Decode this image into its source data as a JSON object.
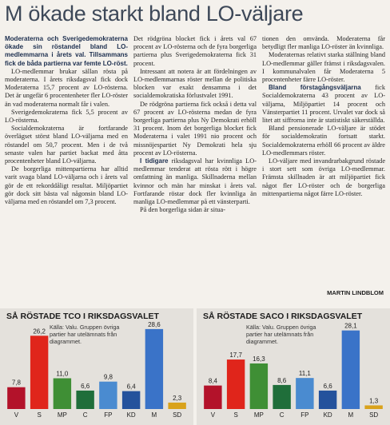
{
  "headline": "M ökade starkt bland LO-väljare",
  "columns": [
    [
      {
        "lead": "Moderaterna och Sverigedemokraterna ökade sin röstandel bland LO-medlemmarna i årets val. Tillsammans fick de båda partierna var femte LO-röst."
      },
      {
        "text": "LO-medlemmar brukar sällan rösta på moderaterna. I årets riksdagsval fick dock Moderaterna 15,7 procent av LO-rösterna. Det är ungefär 6 procentenheter fler LO-röster än vad moderaterna normalt får i valen."
      },
      {
        "text": "Sverigedemokraterna fick 5,5 procent av LO-rösterna."
      },
      {
        "text": "Socialdemokraterna är fortfarande överlägset störst bland LO-väljarna med en röstandel om 50,7 procent. Men i de två senaste valen har partiet backat med åtta procentenheter bland LO-väljarna."
      },
      {
        "text": "De borgerliga mittenpartierna har alltid varit svaga bland LO-väljarna och i årets val gör de ett rekorddåligt resultat. Miljöpartiet gör dock sitt bästa val någonsin bland LO-väljarna med en röstandel om 7,3 procent."
      }
    ],
    [
      {
        "text": "Det rödgröna blocket fick i årets val 67 procent av LO-rösterna och de fyra borgerliga partierna plus Sverigedemokraterna fick 31 procent."
      },
      {
        "text": "Intressant att notera är att fördelningen av LO-medlemmarnas röster mellan de politiska blocken var exakt densamma i det socialdemokratiska förlustvalet 1991."
      },
      {
        "text": "De rödgröna partierna fick också i detta val 67 procent av LO-rösterna medan de fyra borgerliga partierna plus Ny Demokrati erhöll 31 procent. Inom det borgerliga blocket fick Moderaterna i valet 1991 nio procent och missnöjespartiet Ny Demokrati hela sju procent av LO-rösterna."
      },
      {
        "lead": "I tidigare",
        "text": " riksdagsval har kvinnliga LO-medlemmar tenderat att rösta rött i högre omfattning än manliga. Skillnaderna mellan kvinnor och män har minskat i årets val. Fortfarande röstar dock fler kvinnliga än manliga LO-medlemmar på ett vänsterparti."
      },
      {
        "text": "På den borgerliga sidan är situa-"
      }
    ],
    [
      {
        "text": "tionen den omvända. Moderaterna får betydligt fler manliga LO-röster än kvinnliga.",
        "cont": true
      },
      {
        "text": "Moderaternas relativt starka ställning bland LO-medlemmar gäller främst i riksdagsvalen. I kommunalvalen får Moderaterna 5 procentenheter färre LO-röster."
      },
      {
        "lead": "Bland förstagångsväljarna",
        "text": " fick Socialdemokraterna 43 procent av LO-väljarna, Miljöpartiet 14 procent och Vänsterpartiet 11 procent. Urvalet var dock så litet att siffrorna inte är statistiskt säkerställda."
      },
      {
        "text": "Bland pensionerade LO-väljare är stödet för socialdemokratin fortsatt starkt. Socialdemokraterna erhöll 66 procent av äldre LO-medlemmars röster."
      },
      {
        "text": "LO-väljare med invandrarbakgrund röstade i stort sett som övriga LO-medlemmar. Främsta skillnaden är att miljöpartiet fick något fler LO-röster och de borgerliga mittenpartierna något färre LO-röster."
      }
    ]
  ],
  "byline": "MARTIN LINDBLOM",
  "charts": [
    {
      "type": "bar",
      "title": "SÅ RÖSTADE TCO I RIKSDAGSVALET",
      "note": "Källa: Valu. Gruppen övriga partier har utelämnats från diagrammet.",
      "categories": [
        "V",
        "S",
        "MP",
        "C",
        "FP",
        "KD",
        "M",
        "SD"
      ],
      "values": [
        7.8,
        26.2,
        11.0,
        6.6,
        9.8,
        6.4,
        28.6,
        2.3
      ],
      "value_labels": [
        "7,8",
        "26,2",
        "11,0",
        "6,6",
        "9,8",
        "6,4",
        "28,6",
        "2,3"
      ],
      "colors": [
        "#b3122a",
        "#e0251b",
        "#3f8f35",
        "#1f6e3a",
        "#4a8bd0",
        "#24529c",
        "#3a73c8",
        "#d9a21b"
      ]
    },
    {
      "type": "bar",
      "title": "SÅ RÖSTADE SACO I RIKSDAGSVALET",
      "note": "Källa: Valu. Gruppen övriga partier har utelämnats från diagrammet.",
      "categories": [
        "V",
        "S",
        "MP",
        "C",
        "FP",
        "KD",
        "M",
        "SD"
      ],
      "values": [
        8.4,
        17.7,
        16.3,
        8.6,
        11.1,
        6.6,
        28.1,
        1.3
      ],
      "value_labels": [
        "8,4",
        "17,7",
        "16,3",
        "8,6",
        "11,1",
        "6,6",
        "28,1",
        "1,3"
      ],
      "colors": [
        "#b3122a",
        "#e0251b",
        "#3f8f35",
        "#1f6e3a",
        "#4a8bd0",
        "#24529c",
        "#3a73c8",
        "#d9a21b"
      ]
    }
  ]
}
